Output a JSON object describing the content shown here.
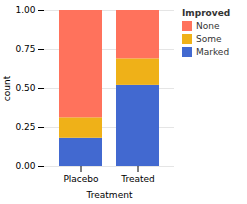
{
  "chart_data": {
    "type": "bar",
    "stacked": true,
    "xlabel": "Treatment",
    "ylabel": "count",
    "legend_title": "Improved",
    "legend": "right",
    "categories": [
      "Placebo",
      "Treated"
    ],
    "series": [
      {
        "name": "Marked",
        "values": [
          0.181,
          0.52
        ]
      },
      {
        "name": "Some",
        "values": [
          0.131,
          0.17
        ]
      },
      {
        "name": "None",
        "values": [
          0.688,
          0.31
        ]
      }
    ],
    "ylim": [
      0.0,
      1.0
    ],
    "yticks": [
      {
        "value": 0.0,
        "label": "0.00"
      },
      {
        "value": 0.25,
        "label": "0.25"
      },
      {
        "value": 0.5,
        "label": "0.50"
      },
      {
        "value": 0.75,
        "label": "0.75"
      },
      {
        "value": 1.0,
        "label": "1.00"
      }
    ],
    "grid": true
  }
}
